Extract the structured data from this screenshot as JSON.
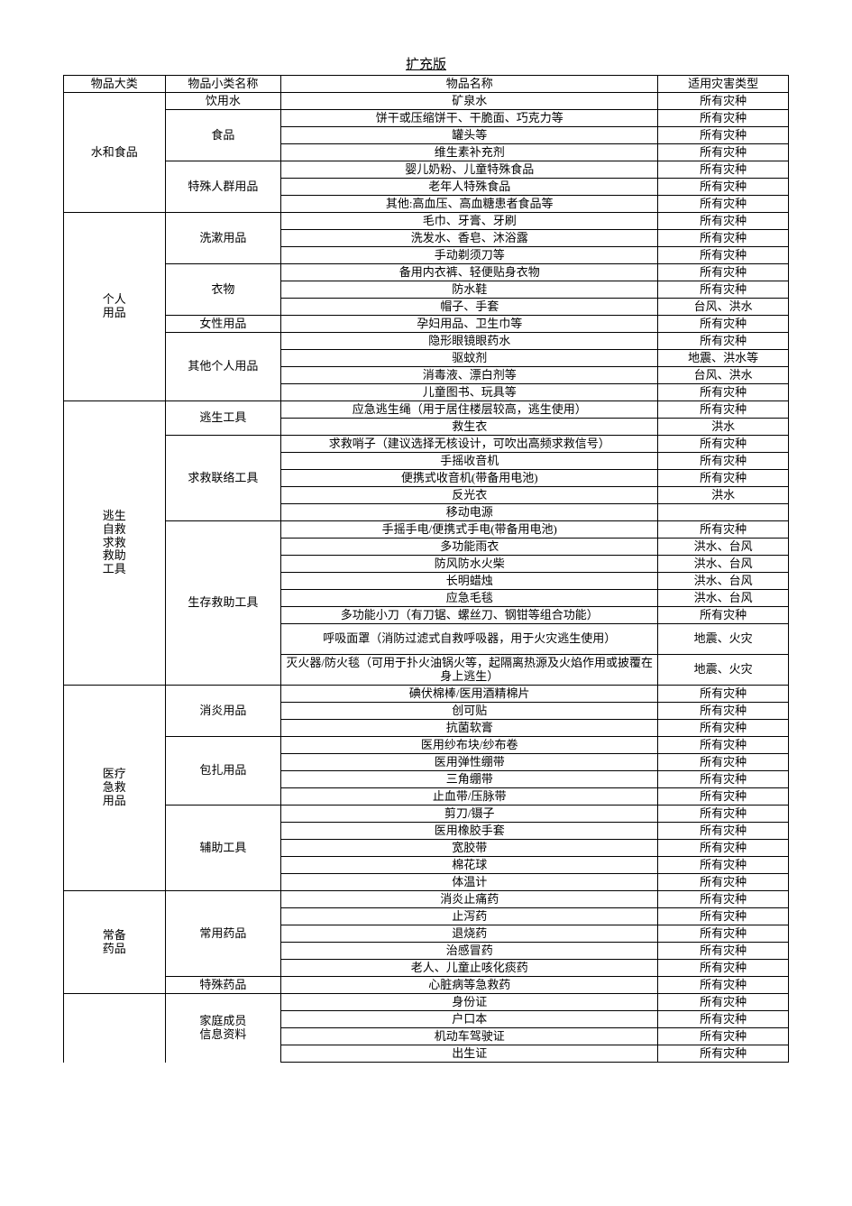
{
  "title": "扩充版",
  "headers": {
    "c1": "物品大类",
    "c2": "物品小类名称",
    "c3": "物品名称",
    "c4": "适用灾害类型"
  },
  "groups": [
    {
      "cat": "水和食品",
      "subs": [
        {
          "sub": "饮用水",
          "items": [
            {
              "n": "矿泉水",
              "d": "所有灾种"
            }
          ]
        },
        {
          "sub": "食品",
          "items": [
            {
              "n": "饼干或压缩饼干、干脆面、巧克力等",
              "d": "所有灾种"
            },
            {
              "n": "罐头等",
              "d": "所有灾种"
            },
            {
              "n": "维生素补充剂",
              "d": "所有灾种"
            }
          ]
        },
        {
          "sub": "特殊人群用品",
          "items": [
            {
              "n": "婴儿奶粉、儿童特殊食品",
              "d": "所有灾种"
            },
            {
              "n": "老年人特殊食品",
              "d": "所有灾种"
            },
            {
              "n": "其他:高血压、高血糖患者食品等",
              "d": "所有灾种"
            }
          ]
        }
      ]
    },
    {
      "cat": "个人\n用品",
      "subs": [
        {
          "sub": "洗漱用品",
          "items": [
            {
              "n": "毛巾、牙膏、牙刷",
              "d": "所有灾种"
            },
            {
              "n": "洗发水、香皂、沐浴露",
              "d": "所有灾种"
            },
            {
              "n": "手动剃须刀等",
              "d": "所有灾种"
            }
          ]
        },
        {
          "sub": "衣物",
          "items": [
            {
              "n": "备用内衣裤、轻便贴身衣物",
              "d": "所有灾种"
            },
            {
              "n": "防水鞋",
              "d": "所有灾种"
            },
            {
              "n": "帽子、手套",
              "d": "台风、洪水"
            }
          ]
        },
        {
          "sub": "女性用品",
          "items": [
            {
              "n": "孕妇用品、卫生巾等",
              "d": "所有灾种"
            }
          ]
        },
        {
          "sub": "其他个人用品",
          "items": [
            {
              "n": "隐形眼镜眼药水",
              "d": "所有灾种"
            },
            {
              "n": "驱蚊剂",
              "d": "地震、洪水等"
            },
            {
              "n": "消毒液、漂白剂等",
              "d": "台风、洪水"
            },
            {
              "n": "儿童图书、玩具等",
              "d": "所有灾种"
            }
          ]
        }
      ]
    },
    {
      "cat": "逃生\n自救\n求救\n救助\n工具",
      "subs": [
        {
          "sub": "逃生工具",
          "items": [
            {
              "n": "应急逃生绳（用于居住楼层较高，逃生使用）",
              "d": "所有灾种"
            },
            {
              "n": "救生衣",
              "d": "洪水"
            }
          ]
        },
        {
          "sub": "求救联络工具",
          "items": [
            {
              "n": "求救哨子（建议选择无核设计，可吹出高频求救信号）",
              "d": "所有灾种",
              "cut": true
            },
            {
              "n": "手摇收音机",
              "d": "所有灾种"
            },
            {
              "n": "便携式收音机(带备用电池)",
              "d": "所有灾种"
            },
            {
              "n": "反光衣",
              "d": "洪水"
            },
            {
              "n": "移动电源",
              "d": ""
            }
          ]
        },
        {
          "sub": "生存救助工具",
          "items": [
            {
              "n": "手摇手电/便携式手电(带备用电池)",
              "d": "所有灾种"
            },
            {
              "n": "多功能雨衣",
              "d": "洪水、台风"
            },
            {
              "n": "防风防水火柴",
              "d": "洪水、台风"
            },
            {
              "n": "长明蜡烛",
              "d": "洪水、台风"
            },
            {
              "n": "应急毛毯",
              "d": "洪水、台风"
            },
            {
              "n": "多功能小刀（有刀锯、螺丝刀、钢钳等组合功能）",
              "d": "所有灾种"
            },
            {
              "n": "呼吸面罩（消防过滤式自救呼吸器，用于火灾逃生使用）",
              "d": "地震、火灾",
              "tall": true
            },
            {
              "n": "灭火器/防火毯（可用于扑火油锅火等，起隔离热源及火焰作用或披覆在身上逃生）",
              "d": "地震、火灾",
              "tall": true
            }
          ]
        }
      ]
    },
    {
      "cat": "医疗\n急救\n用品",
      "subs": [
        {
          "sub": "消炎用品",
          "items": [
            {
              "n": "碘伏棉棒/医用酒精棉片",
              "d": "所有灾种"
            },
            {
              "n": "创可贴",
              "d": "所有灾种"
            },
            {
              "n": "抗菌软膏",
              "d": "所有灾种"
            }
          ]
        },
        {
          "sub": "包扎用品",
          "items": [
            {
              "n": "医用纱布块/纱布卷",
              "d": "所有灾种"
            },
            {
              "n": "医用弹性绷带",
              "d": "所有灾种"
            },
            {
              "n": "三角绷带",
              "d": "所有灾种"
            },
            {
              "n": "止血带/压脉带",
              "d": "所有灾种"
            }
          ]
        },
        {
          "sub": "辅助工具",
          "items": [
            {
              "n": "剪刀/镊子",
              "d": "所有灾种"
            },
            {
              "n": "医用橡胶手套",
              "d": "所有灾种"
            },
            {
              "n": "宽胶带",
              "d": "所有灾种"
            },
            {
              "n": "棉花球",
              "d": "所有灾种"
            },
            {
              "n": "体温计",
              "d": "所有灾种"
            }
          ]
        }
      ]
    },
    {
      "cat": "常备\n药品",
      "subs": [
        {
          "sub": "常用药品",
          "items": [
            {
              "n": "消炎止痛药",
              "d": "所有灾种"
            },
            {
              "n": "止泻药",
              "d": "所有灾种"
            },
            {
              "n": "退烧药",
              "d": "所有灾种"
            },
            {
              "n": "治感冒药",
              "d": "所有灾种"
            },
            {
              "n": "老人、儿童止咳化痰药",
              "d": "所有灾种"
            }
          ]
        },
        {
          "sub": "特殊药品",
          "items": [
            {
              "n": "心脏病等急救药",
              "d": "所有灾种"
            }
          ]
        }
      ]
    },
    {
      "cat": "",
      "open": true,
      "subs": [
        {
          "sub": "家庭成员\n信息资料",
          "open": true,
          "items": [
            {
              "n": "身份证",
              "d": "所有灾种"
            },
            {
              "n": "户口本",
              "d": "所有灾种"
            },
            {
              "n": "机动车驾驶证",
              "d": "所有灾种"
            },
            {
              "n": "出生证",
              "d": "所有灾种"
            }
          ]
        }
      ]
    }
  ]
}
